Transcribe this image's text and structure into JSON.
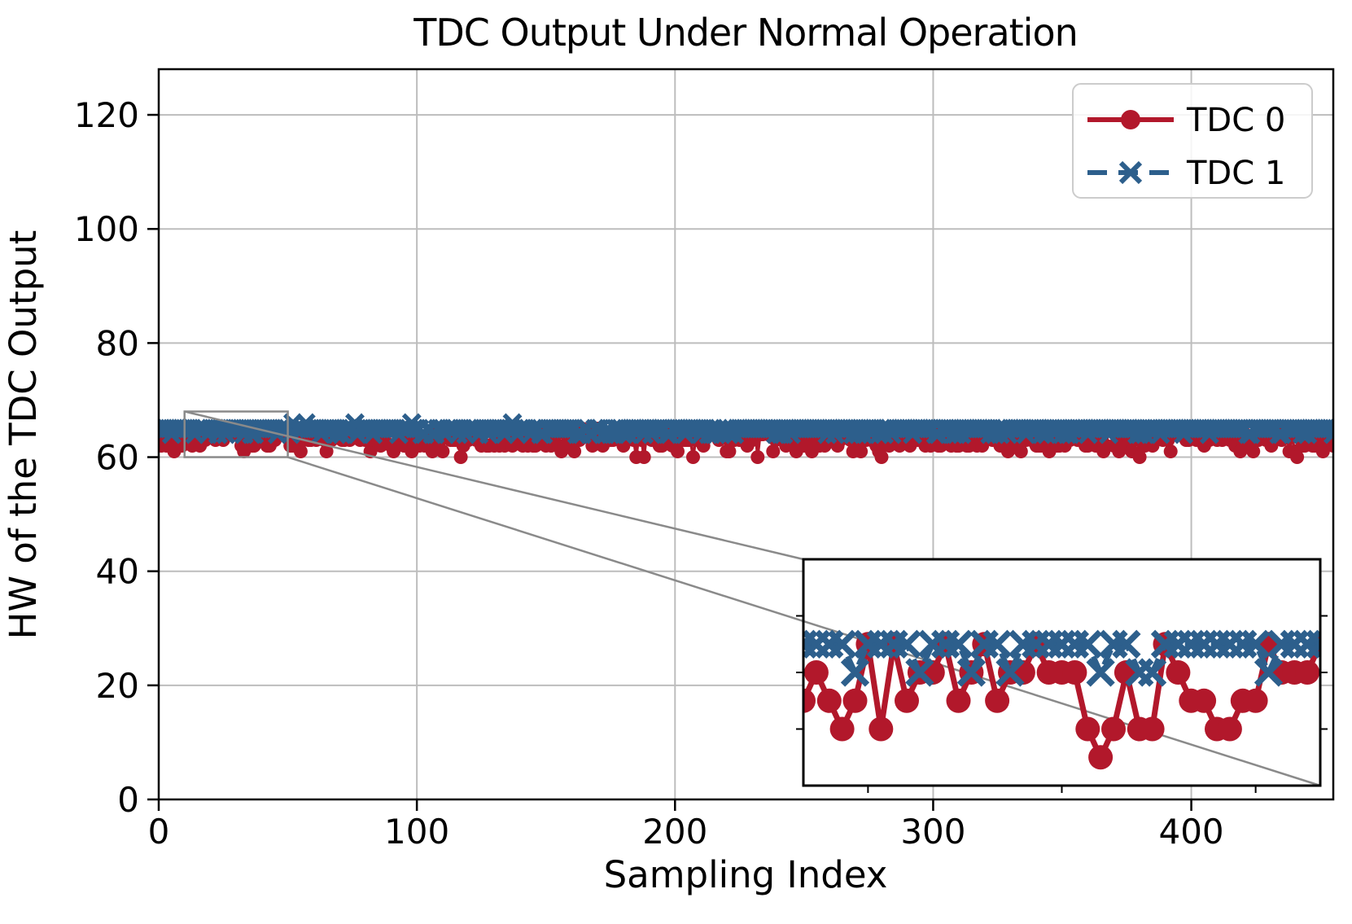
{
  "title": "TDC Output Under Normal Operation",
  "axis": {
    "xlabel": "Sampling Index",
    "ylabel": "HW of the TDC Output"
  },
  "legend": {
    "items": [
      {
        "label": "TDC 0"
      },
      {
        "label": "TDC 1"
      }
    ]
  },
  "colors": {
    "tdc0": "#b2182b",
    "tdc1": "#2d5f8c",
    "grid": "#bdbdbd",
    "spine": "#000000",
    "connector": "#8a8a8a",
    "legend_border": "#cccccc",
    "background": "#ffffff"
  },
  "chart_data": {
    "type": "line",
    "title": "TDC Output Under Normal Operation",
    "xlabel": "Sampling Index",
    "ylabel": "HW of the TDC Output",
    "xlim": [
      0,
      455
    ],
    "ylim": [
      0,
      128
    ],
    "xticks": [
      0,
      100,
      200,
      300,
      400
    ],
    "yticks": [
      0,
      20,
      40,
      60,
      80,
      100,
      120
    ],
    "grid": true,
    "legend_position": "upper right",
    "n_points": 456,
    "series": [
      {
        "name": "TDC 0",
        "color": "#b2182b",
        "line": "solid",
        "marker": "circle",
        "approx_mean": 63,
        "observed_range": [
          59,
          65
        ]
      },
      {
        "name": "TDC 1",
        "color": "#2d5f8c",
        "line": "dashed",
        "marker": "x",
        "approx_mean": 65,
        "observed_range": [
          63,
          67
        ]
      }
    ],
    "band_levels": {
      "tdc0": {
        "60": 0.01,
        "61": 0.07,
        "62": 0.2,
        "63": 0.34,
        "64": 0.26,
        "65": 0.12
      },
      "tdc1": {
        "64": 0.2,
        "65": 0.775,
        "66": 0.017,
        "67": 0.008
      }
    },
    "zoom_region": {
      "x": [
        10,
        50
      ],
      "y": [
        60,
        68
      ]
    },
    "inset": {
      "x_range": [
        10,
        50
      ],
      "ylim": [
        60,
        68
      ],
      "x_ticks": [
        15,
        30,
        45
      ],
      "y_ticks": [
        62,
        64,
        66
      ],
      "tdc0": [
        63,
        64,
        63,
        62,
        63,
        65,
        62,
        65,
        63,
        64,
        64,
        65,
        63,
        64,
        65,
        63,
        64,
        64,
        65,
        64,
        64,
        64,
        62,
        61,
        62,
        64,
        62,
        62,
        65,
        64,
        63,
        63,
        62,
        62,
        63,
        63,
        65,
        64,
        64,
        64,
        65
      ],
      "tdc1": [
        65,
        65,
        65,
        65,
        64,
        65,
        65,
        65,
        65,
        64,
        65,
        65,
        65,
        64,
        65,
        65,
        64,
        65,
        65,
        65,
        65,
        65,
        65,
        64,
        65,
        65,
        64,
        64,
        65,
        65,
        65,
        65,
        65,
        65,
        65,
        65,
        64,
        65,
        65,
        65,
        65
      ]
    }
  }
}
